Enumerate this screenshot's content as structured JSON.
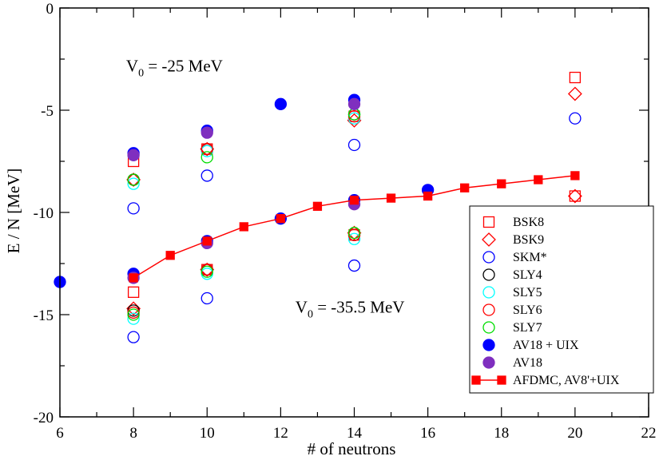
{
  "chart_data": {
    "type": "scatter",
    "title": "",
    "xlabel": "# of neutrons",
    "ylabel": "E / N [MeV]",
    "xlim": [
      6,
      22
    ],
    "ylim": [
      -20,
      0
    ],
    "xticks": [
      6,
      8,
      10,
      12,
      14,
      16,
      18,
      20,
      22
    ],
    "yticks": [
      0,
      -5,
      -10,
      -15,
      -20
    ],
    "xtick_labels": [
      "6",
      "8",
      "10",
      "12",
      "14",
      "16",
      "18",
      "20",
      "22"
    ],
    "ytick_labels": [
      "0",
      "-5",
      "-10",
      "-15",
      "-20"
    ],
    "grid": false,
    "legend_position": "lower-right",
    "annotations": [
      {
        "id": "v0-25",
        "main": "V",
        "sub": "0",
        "rest": " = -25 MeV",
        "x": 7.8,
        "y": -3.1
      },
      {
        "id": "v0-35",
        "main": "V",
        "sub": "0",
        "rest": " = -35.5 MeV",
        "x": 12.4,
        "y": -14.9
      }
    ],
    "series": [
      {
        "name": "BSK8",
        "marker": "square",
        "filled": false,
        "color": "#ff0000",
        "points": [
          [
            8,
            -7.5
          ],
          [
            8,
            -13.9
          ],
          [
            10,
            -6.9
          ],
          [
            10,
            -12.8
          ],
          [
            14,
            -5.3
          ],
          [
            14,
            -11.1
          ],
          [
            20,
            -3.4
          ],
          [
            20,
            -9.2
          ]
        ]
      },
      {
        "name": "BSK9",
        "marker": "diamond",
        "filled": false,
        "color": "#ff0000",
        "points": [
          [
            8,
            -8.4
          ],
          [
            8,
            -14.7
          ],
          [
            10,
            -6.9
          ],
          [
            10,
            -12.8
          ],
          [
            14,
            -5.5
          ],
          [
            14,
            -11.0
          ],
          [
            20,
            -4.2
          ],
          [
            20,
            -9.2
          ]
        ]
      },
      {
        "name": "SKM*",
        "marker": "circle",
        "filled": false,
        "color": "#0000ff",
        "points": [
          [
            8,
            -9.8
          ],
          [
            8,
            -16.1
          ],
          [
            10,
            -8.2
          ],
          [
            10,
            -14.2
          ],
          [
            14,
            -6.7
          ],
          [
            14,
            -12.6
          ],
          [
            20,
            -5.4
          ]
        ]
      },
      {
        "name": "SLY4",
        "marker": "circle",
        "filled": false,
        "color": "#000000",
        "points": [
          [
            8,
            -8.4
          ],
          [
            8,
            -14.8
          ],
          [
            10,
            -6.9
          ],
          [
            10,
            -12.8
          ],
          [
            14,
            -5.2
          ],
          [
            14,
            -11.1
          ]
        ]
      },
      {
        "name": "SLY5",
        "marker": "circle",
        "filled": false,
        "color": "#00ffff",
        "points": [
          [
            8,
            -8.6
          ],
          [
            8,
            -15.2
          ],
          [
            10,
            -7.0
          ],
          [
            10,
            -13.0
          ],
          [
            14,
            -5.4
          ],
          [
            14,
            -11.3
          ]
        ]
      },
      {
        "name": "SLY6",
        "marker": "circle",
        "filled": false,
        "color": "#ff0000",
        "points": [
          [
            8,
            -8.4
          ],
          [
            8,
            -14.9
          ],
          [
            10,
            -6.9
          ],
          [
            10,
            -12.8
          ],
          [
            14,
            -5.3
          ],
          [
            14,
            -11.1
          ]
        ]
      },
      {
        "name": "SLY7",
        "marker": "circle",
        "filled": false,
        "color": "#00dd00",
        "points": [
          [
            8,
            -8.4
          ],
          [
            8,
            -15.0
          ],
          [
            10,
            -7.3
          ],
          [
            10,
            -12.9
          ],
          [
            14,
            -5.2
          ],
          [
            14,
            -11.0
          ]
        ]
      },
      {
        "name": "AV18 + UIX",
        "marker": "circle",
        "filled": true,
        "color": "#0000ff",
        "points": [
          [
            6,
            -13.4
          ],
          [
            8,
            -7.1
          ],
          [
            8,
            -13.0
          ],
          [
            10,
            -6.0
          ],
          [
            10,
            -11.4
          ],
          [
            12,
            -4.7
          ],
          [
            12,
            -10.3
          ],
          [
            14,
            -4.5
          ],
          [
            14,
            -9.4
          ],
          [
            16,
            -8.9
          ]
        ]
      },
      {
        "name": "AV18",
        "marker": "circle",
        "filled": true,
        "color": "#7f2fbf",
        "points": [
          [
            8,
            -7.2
          ],
          [
            8,
            -13.2
          ],
          [
            10,
            -6.1
          ],
          [
            10,
            -11.5
          ],
          [
            14,
            -4.7
          ],
          [
            14,
            -9.6
          ]
        ]
      },
      {
        "name": "AFDMC, AV8'+UIX",
        "marker": "square",
        "filled": true,
        "color": "#ff0000",
        "line": true,
        "points": [
          [
            8,
            -13.2
          ],
          [
            9,
            -12.1
          ],
          [
            10,
            -11.4
          ],
          [
            11,
            -10.7
          ],
          [
            12,
            -10.3
          ],
          [
            13,
            -9.7
          ],
          [
            14,
            -9.4
          ],
          [
            15,
            -9.3
          ],
          [
            16,
            -9.2
          ],
          [
            17,
            -8.8
          ],
          [
            18,
            -8.6
          ],
          [
            19,
            -8.4
          ],
          [
            20,
            -8.2
          ]
        ]
      }
    ]
  }
}
